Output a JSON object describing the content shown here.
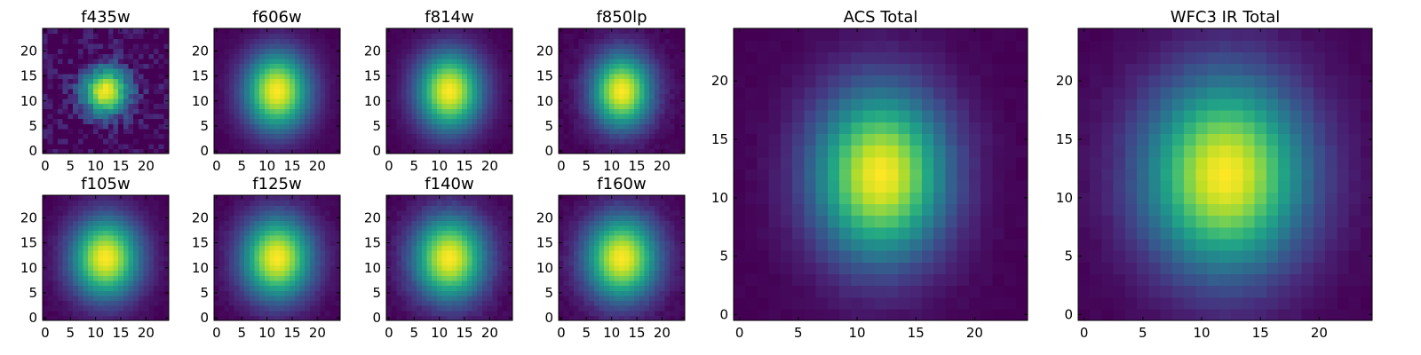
{
  "figure": {
    "colormap": "viridis"
  },
  "chart_data": [
    {
      "type": "heatmap",
      "title": "f435w",
      "grid_size": 25,
      "center": [
        12,
        12
      ],
      "sigma": [
        2.4,
        2.4
      ],
      "noise": 0.22,
      "xticks": [
        0,
        5,
        10,
        15,
        20
      ],
      "yticks": [
        0,
        5,
        10,
        15,
        20
      ],
      "xlim": [
        -0.5,
        24.5
      ],
      "ylim": [
        -0.5,
        24.5
      ]
    },
    {
      "type": "heatmap",
      "title": "f606w",
      "grid_size": 25,
      "center": [
        12,
        12
      ],
      "sigma": [
        3.2,
        3.9
      ],
      "noise": 0.02,
      "xticks": [
        0,
        5,
        10,
        15,
        20
      ],
      "yticks": [
        0,
        5,
        10,
        15,
        20
      ],
      "xlim": [
        -0.5,
        24.5
      ],
      "ylim": [
        -0.5,
        24.5
      ]
    },
    {
      "type": "heatmap",
      "title": "f814w",
      "grid_size": 25,
      "center": [
        12,
        12
      ],
      "sigma": [
        3.2,
        3.9
      ],
      "noise": 0.02,
      "xticks": [
        0,
        5,
        10,
        15,
        20
      ],
      "yticks": [
        0,
        5,
        10,
        15,
        20
      ],
      "xlim": [
        -0.5,
        24.5
      ],
      "ylim": [
        -0.5,
        24.5
      ]
    },
    {
      "type": "heatmap",
      "title": "f850lp",
      "grid_size": 25,
      "center": [
        12,
        12
      ],
      "sigma": [
        3.0,
        3.7
      ],
      "noise": 0.04,
      "xticks": [
        0,
        5,
        10,
        15,
        20
      ],
      "yticks": [
        0,
        5,
        10,
        15,
        20
      ],
      "xlim": [
        -0.5,
        24.5
      ],
      "ylim": [
        -0.5,
        24.5
      ]
    },
    {
      "type": "heatmap",
      "title": "f105w",
      "grid_size": 25,
      "center": [
        12,
        12
      ],
      "sigma": [
        3.4,
        4.0
      ],
      "noise": 0.03,
      "xticks": [
        0,
        5,
        10,
        15,
        20
      ],
      "yticks": [
        0,
        5,
        10,
        15,
        20
      ],
      "xlim": [
        -0.5,
        24.5
      ],
      "ylim": [
        -0.5,
        24.5
      ]
    },
    {
      "type": "heatmap",
      "title": "f125w",
      "grid_size": 25,
      "center": [
        12,
        12
      ],
      "sigma": [
        3.5,
        4.1
      ],
      "noise": 0.03,
      "xticks": [
        0,
        5,
        10,
        15,
        20
      ],
      "yticks": [
        0,
        5,
        10,
        15,
        20
      ],
      "xlim": [
        -0.5,
        24.5
      ],
      "ylim": [
        -0.5,
        24.5
      ]
    },
    {
      "type": "heatmap",
      "title": "f140w",
      "grid_size": 25,
      "center": [
        12,
        12
      ],
      "sigma": [
        3.6,
        4.2
      ],
      "noise": 0.04,
      "xticks": [
        0,
        5,
        10,
        15,
        20
      ],
      "yticks": [
        0,
        5,
        10,
        15,
        20
      ],
      "xlim": [
        -0.5,
        24.5
      ],
      "ylim": [
        -0.5,
        24.5
      ]
    },
    {
      "type": "heatmap",
      "title": "f160w",
      "grid_size": 25,
      "center": [
        12,
        12
      ],
      "sigma": [
        3.6,
        4.2
      ],
      "noise": 0.04,
      "xticks": [
        0,
        5,
        10,
        15,
        20
      ],
      "yticks": [
        0,
        5,
        10,
        15,
        20
      ],
      "xlim": [
        -0.5,
        24.5
      ],
      "ylim": [
        -0.5,
        24.5
      ]
    },
    {
      "type": "heatmap",
      "title": "ACS Total",
      "grid_size": 25,
      "center": [
        12,
        12
      ],
      "sigma": [
        2.8,
        3.6
      ],
      "noise": 0.02,
      "xticks": [
        0,
        5,
        10,
        15,
        20
      ],
      "yticks": [
        0,
        5,
        10,
        15,
        20
      ],
      "xlim": [
        -0.5,
        24.5
      ],
      "ylim": [
        -0.5,
        24.5
      ]
    },
    {
      "type": "heatmap",
      "title": "WFC3 IR Total",
      "grid_size": 25,
      "center": [
        12,
        12
      ],
      "sigma": [
        3.4,
        4.1
      ],
      "noise": 0.02,
      "xticks": [
        0,
        5,
        10,
        15,
        20
      ],
      "yticks": [
        0,
        5,
        10,
        15,
        20
      ],
      "xlim": [
        -0.5,
        24.5
      ],
      "ylim": [
        -0.5,
        24.5
      ]
    }
  ]
}
